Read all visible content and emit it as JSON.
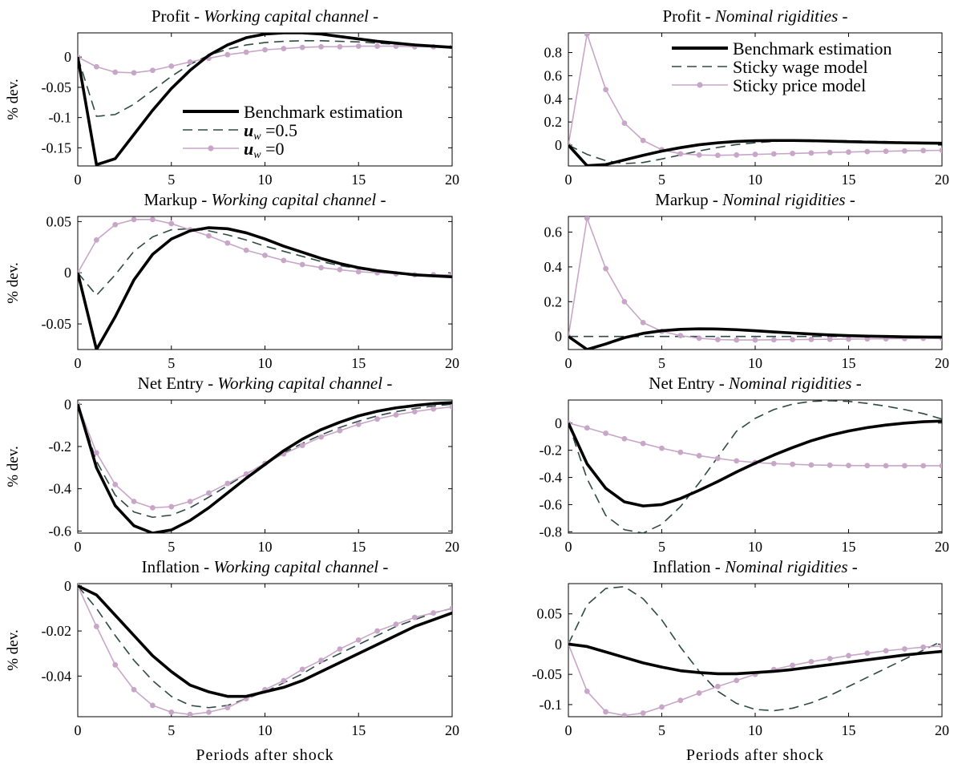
{
  "colors": {
    "benchmark": "#000000",
    "dashed": "#2f4a44",
    "marker": "#c8a6c8"
  },
  "legend_labels": {
    "left": [
      "Benchmark estimation",
      "u_w = 0.5",
      "u_w = 0"
    ],
    "right": [
      "Benchmark estimation",
      "Sticky wage model",
      "Sticky price model"
    ]
  },
  "chart_data": [
    {
      "type": "line",
      "title_main": "Profit - ",
      "title_italic": "Working capital channel",
      "title_tail": " -",
      "ylabel": "% dev.",
      "xlabel": "",
      "x": [
        0,
        1,
        2,
        3,
        4,
        5,
        6,
        7,
        8,
        9,
        10,
        11,
        12,
        13,
        14,
        15,
        16,
        17,
        18,
        19,
        20
      ],
      "xticks": [
        0,
        5,
        10,
        15,
        20
      ],
      "yticks": [
        0,
        -0.05,
        -0.1,
        -0.15
      ],
      "ytick_labels": [
        "0",
        "-0.05",
        "-0.1",
        "-0.15"
      ],
      "ylim": [
        -0.18,
        0.04
      ],
      "legend": "inside",
      "series": [
        {
          "name": "Benchmark estimation",
          "style": "solid",
          "values": [
            0,
            -0.178,
            -0.168,
            -0.128,
            -0.088,
            -0.052,
            -0.022,
            0.003,
            0.02,
            0.032,
            0.038,
            0.04,
            0.04,
            0.038,
            0.034,
            0.03,
            0.026,
            0.023,
            0.02,
            0.018,
            0.016
          ]
        },
        {
          "name": "u_w = 0.5",
          "style": "dashed",
          "values": [
            0,
            -0.098,
            -0.095,
            -0.078,
            -0.055,
            -0.032,
            -0.012,
            0.003,
            0.013,
            0.02,
            0.024,
            0.026,
            0.027,
            0.027,
            0.026,
            0.025,
            0.023,
            0.021,
            0.02,
            0.018,
            0.016
          ]
        },
        {
          "name": "u_w = 0",
          "style": "marker",
          "values": [
            0,
            -0.016,
            -0.025,
            -0.026,
            -0.022,
            -0.015,
            -0.008,
            -0.002,
            0.004,
            0.008,
            0.012,
            0.014,
            0.016,
            0.017,
            0.017,
            0.018,
            0.018,
            0.018,
            0.017,
            0.017,
            0.017
          ]
        }
      ]
    },
    {
      "type": "line",
      "title_main": "Profit - ",
      "title_italic": "Nominal rigidities",
      "title_tail": " -",
      "ylabel": "",
      "xlabel": "",
      "x": [
        0,
        1,
        2,
        3,
        4,
        5,
        6,
        7,
        8,
        9,
        10,
        11,
        12,
        13,
        14,
        15,
        16,
        17,
        18,
        19,
        20
      ],
      "xticks": [
        0,
        5,
        10,
        15,
        20
      ],
      "yticks": [
        0,
        0.2,
        0.4,
        0.6,
        0.8
      ],
      "ytick_labels": [
        "0",
        "0.2",
        "0.4",
        "0.6",
        "0.8"
      ],
      "ylim": [
        -0.18,
        0.97
      ],
      "legend": "top-right",
      "series": [
        {
          "name": "Benchmark estimation",
          "style": "solid",
          "values": [
            0,
            -0.178,
            -0.168,
            -0.128,
            -0.088,
            -0.052,
            -0.022,
            0.003,
            0.02,
            0.032,
            0.038,
            0.04,
            0.04,
            0.038,
            0.034,
            0.03,
            0.026,
            0.023,
            0.02,
            0.018,
            0.016
          ]
        },
        {
          "name": "Sticky wage model",
          "style": "dashed",
          "values": [
            0,
            -0.08,
            -0.135,
            -0.16,
            -0.15,
            -0.12,
            -0.085,
            -0.05,
            -0.02,
            0.005,
            0.02,
            0.032,
            0.038,
            0.04,
            0.04,
            0.038,
            0.034,
            0.03,
            0.026,
            0.022,
            0.018
          ]
        },
        {
          "name": "Sticky price model",
          "style": "marker",
          "values": [
            0,
            0.96,
            0.48,
            0.19,
            0.04,
            -0.04,
            -0.075,
            -0.085,
            -0.088,
            -0.085,
            -0.08,
            -0.076,
            -0.072,
            -0.068,
            -0.064,
            -0.06,
            -0.056,
            -0.053,
            -0.05,
            -0.047,
            -0.045
          ]
        }
      ]
    },
    {
      "type": "line",
      "title_main": "Markup - ",
      "title_italic": "Working capital channel",
      "title_tail": " -",
      "ylabel": "% dev.",
      "xlabel": "",
      "x": [
        0,
        1,
        2,
        3,
        4,
        5,
        6,
        7,
        8,
        9,
        10,
        11,
        12,
        13,
        14,
        15,
        16,
        17,
        18,
        19,
        20
      ],
      "xticks": [
        0,
        5,
        10,
        15,
        20
      ],
      "yticks": [
        0.05,
        0,
        -0.05
      ],
      "ytick_labels": [
        "0.05",
        "0",
        "-0.05"
      ],
      "ylim": [
        -0.075,
        0.055
      ],
      "legend": "none",
      "series": [
        {
          "name": "Benchmark estimation",
          "style": "solid",
          "values": [
            0,
            -0.075,
            -0.043,
            -0.007,
            0.018,
            0.033,
            0.041,
            0.044,
            0.043,
            0.039,
            0.033,
            0.026,
            0.02,
            0.014,
            0.009,
            0.005,
            0.002,
            0,
            -0.002,
            -0.003,
            -0.004
          ]
        },
        {
          "name": "u_w = 0.5",
          "style": "dashed",
          "values": [
            0,
            -0.022,
            -0.002,
            0.021,
            0.035,
            0.042,
            0.043,
            0.041,
            0.037,
            0.032,
            0.026,
            0.021,
            0.016,
            0.011,
            0.007,
            0.004,
            0.001,
            -0.001,
            -0.002,
            -0.003,
            -0.004
          ]
        },
        {
          "name": "u_w = 0",
          "style": "marker",
          "values": [
            0,
            0.032,
            0.047,
            0.052,
            0.052,
            0.048,
            0.042,
            0.036,
            0.029,
            0.022,
            0.017,
            0.012,
            0.008,
            0.005,
            0.003,
            0.001,
            0,
            -0.001,
            -0.002,
            -0.002,
            -0.002
          ]
        }
      ]
    },
    {
      "type": "line",
      "title_main": "Markup - ",
      "title_italic": "Nominal rigidities",
      "title_tail": " -",
      "ylabel": "",
      "xlabel": "",
      "x": [
        0,
        1,
        2,
        3,
        4,
        5,
        6,
        7,
        8,
        9,
        10,
        11,
        12,
        13,
        14,
        15,
        16,
        17,
        18,
        19,
        20
      ],
      "xticks": [
        0,
        5,
        10,
        15,
        20
      ],
      "yticks": [
        0,
        0.2,
        0.4,
        0.6
      ],
      "ytick_labels": [
        "0",
        "0.2",
        "0.4",
        "0.6"
      ],
      "ylim": [
        -0.075,
        0.69
      ],
      "legend": "none",
      "series": [
        {
          "name": "Benchmark estimation",
          "style": "solid",
          "values": [
            0,
            -0.075,
            -0.043,
            -0.007,
            0.018,
            0.033,
            0.041,
            0.044,
            0.043,
            0.039,
            0.033,
            0.026,
            0.02,
            0.014,
            0.009,
            0.005,
            0.002,
            0,
            -0.002,
            -0.003,
            -0.004
          ]
        },
        {
          "name": "Sticky wage model",
          "style": "dashed",
          "values": [
            0,
            0,
            0,
            0,
            0,
            0,
            0,
            0,
            0,
            0,
            0,
            0,
            0,
            0,
            0,
            0,
            0,
            0,
            0,
            0,
            0
          ]
        },
        {
          "name": "Sticky price model",
          "style": "marker",
          "values": [
            0,
            0.68,
            0.39,
            0.2,
            0.08,
            0.03,
            0.005,
            -0.01,
            -0.018,
            -0.02,
            -0.02,
            -0.019,
            -0.018,
            -0.017,
            -0.016,
            -0.015,
            -0.014,
            -0.013,
            -0.012,
            -0.011,
            -0.011
          ]
        }
      ]
    },
    {
      "type": "line",
      "title_main": "Net Entry - ",
      "title_italic": "Working capital channel",
      "title_tail": " -",
      "ylabel": "% dev.",
      "xlabel": "",
      "x": [
        0,
        1,
        2,
        3,
        4,
        5,
        6,
        7,
        8,
        9,
        10,
        11,
        12,
        13,
        14,
        15,
        16,
        17,
        18,
        19,
        20
      ],
      "xticks": [
        0,
        5,
        10,
        15,
        20
      ],
      "yticks": [
        0,
        -0.2,
        -0.4,
        -0.6
      ],
      "ytick_labels": [
        "0",
        "-0.2",
        "-0.4",
        "-0.6"
      ],
      "ylim": [
        -0.61,
        0.02
      ],
      "legend": "none",
      "series": [
        {
          "name": "Benchmark estimation",
          "style": "solid",
          "values": [
            0,
            -0.3,
            -0.48,
            -0.575,
            -0.61,
            -0.595,
            -0.55,
            -0.49,
            -0.42,
            -0.35,
            -0.285,
            -0.22,
            -0.165,
            -0.12,
            -0.085,
            -0.055,
            -0.033,
            -0.017,
            -0.006,
            0.003,
            0.008
          ]
        },
        {
          "name": "u_w = 0.5",
          "style": "dashed",
          "values": [
            0,
            -0.27,
            -0.43,
            -0.51,
            -0.535,
            -0.525,
            -0.49,
            -0.44,
            -0.385,
            -0.33,
            -0.28,
            -0.23,
            -0.185,
            -0.145,
            -0.11,
            -0.08,
            -0.055,
            -0.035,
            -0.02,
            -0.008,
            0
          ]
        },
        {
          "name": "u_w = 0",
          "style": "marker",
          "values": [
            0,
            -0.23,
            -0.38,
            -0.46,
            -0.49,
            -0.485,
            -0.46,
            -0.42,
            -0.375,
            -0.33,
            -0.28,
            -0.235,
            -0.195,
            -0.155,
            -0.125,
            -0.095,
            -0.07,
            -0.05,
            -0.035,
            -0.022,
            -0.012
          ]
        }
      ]
    },
    {
      "type": "line",
      "title_main": "Net Entry - ",
      "title_italic": "Nominal rigidities",
      "title_tail": " -",
      "ylabel": "",
      "xlabel": "",
      "x": [
        0,
        1,
        2,
        3,
        4,
        5,
        6,
        7,
        8,
        9,
        10,
        11,
        12,
        13,
        14,
        15,
        16,
        17,
        18,
        19,
        20
      ],
      "xticks": [
        0,
        5,
        10,
        15,
        20
      ],
      "yticks": [
        0,
        -0.2,
        -0.4,
        -0.6,
        -0.8
      ],
      "ytick_labels": [
        "0",
        "-0.2",
        "-0.4",
        "-0.6",
        "-0.8"
      ],
      "ylim": [
        -0.81,
        0.17
      ],
      "legend": "none",
      "series": [
        {
          "name": "Benchmark estimation",
          "style": "solid",
          "values": [
            0,
            -0.3,
            -0.48,
            -0.58,
            -0.61,
            -0.6,
            -0.555,
            -0.495,
            -0.43,
            -0.36,
            -0.295,
            -0.235,
            -0.18,
            -0.13,
            -0.09,
            -0.058,
            -0.033,
            -0.014,
            0,
            0.01,
            0.015
          ]
        },
        {
          "name": "Sticky wage model",
          "style": "dashed",
          "values": [
            0,
            -0.41,
            -0.68,
            -0.785,
            -0.81,
            -0.745,
            -0.615,
            -0.44,
            -0.25,
            -0.06,
            0.035,
            0.1,
            0.14,
            0.16,
            0.165,
            0.16,
            0.145,
            0.125,
            0.1,
            0.07,
            0.03
          ]
        },
        {
          "name": "Sticky price model",
          "style": "marker",
          "values": [
            0,
            -0.035,
            -0.075,
            -0.115,
            -0.15,
            -0.185,
            -0.215,
            -0.24,
            -0.26,
            -0.278,
            -0.29,
            -0.298,
            -0.303,
            -0.308,
            -0.31,
            -0.312,
            -0.313,
            -0.314,
            -0.314,
            -0.314,
            -0.314
          ]
        }
      ]
    },
    {
      "type": "line",
      "title_main": "Inflation - ",
      "title_italic": "Working capital channel",
      "title_tail": " -",
      "ylabel": "% dev.",
      "xlabel": "Periods after shock",
      "x": [
        0,
        1,
        2,
        3,
        4,
        5,
        6,
        7,
        8,
        9,
        10,
        11,
        12,
        13,
        14,
        15,
        16,
        17,
        18,
        19,
        20
      ],
      "xticks": [
        0,
        5,
        10,
        15,
        20
      ],
      "yticks": [
        0,
        -0.02,
        -0.04
      ],
      "ytick_labels": [
        "0",
        "-0.02",
        "-0.04"
      ],
      "ylim": [
        -0.058,
        0.001
      ],
      "legend": "none",
      "series": [
        {
          "name": "Benchmark estimation",
          "style": "solid",
          "values": [
            0,
            -0.004,
            -0.013,
            -0.022,
            -0.031,
            -0.038,
            -0.044,
            -0.047,
            -0.049,
            -0.049,
            -0.047,
            -0.045,
            -0.042,
            -0.038,
            -0.034,
            -0.03,
            -0.026,
            -0.022,
            -0.018,
            -0.015,
            -0.012
          ]
        },
        {
          "name": "u_w = 0.5",
          "style": "dashed",
          "values": [
            0,
            -0.01,
            -0.022,
            -0.033,
            -0.042,
            -0.049,
            -0.053,
            -0.054,
            -0.053,
            -0.05,
            -0.047,
            -0.043,
            -0.039,
            -0.034,
            -0.03,
            -0.026,
            -0.022,
            -0.018,
            -0.015,
            -0.012,
            -0.01
          ]
        },
        {
          "name": "u_w = 0",
          "style": "marker",
          "values": [
            0,
            -0.018,
            -0.035,
            -0.046,
            -0.053,
            -0.056,
            -0.057,
            -0.056,
            -0.054,
            -0.05,
            -0.046,
            -0.042,
            -0.037,
            -0.033,
            -0.028,
            -0.024,
            -0.02,
            -0.017,
            -0.014,
            -0.012,
            -0.01
          ]
        }
      ]
    },
    {
      "type": "line",
      "title_main": "Inflation - ",
      "title_italic": "Nominal rigidities",
      "title_tail": " -",
      "ylabel": "",
      "xlabel": "Periods after shock",
      "x": [
        0,
        1,
        2,
        3,
        4,
        5,
        6,
        7,
        8,
        9,
        10,
        11,
        12,
        13,
        14,
        15,
        16,
        17,
        18,
        19,
        20
      ],
      "xticks": [
        0,
        5,
        10,
        15,
        20
      ],
      "yticks": [
        0.05,
        0,
        -0.05,
        -0.1
      ],
      "ytick_labels": [
        "0.05",
        "0",
        "-0.05",
        "-0.1"
      ],
      "ylim": [
        -0.12,
        0.1
      ],
      "legend": "none",
      "series": [
        {
          "name": "Benchmark estimation",
          "style": "solid",
          "values": [
            0,
            -0.004,
            -0.013,
            -0.022,
            -0.031,
            -0.038,
            -0.044,
            -0.047,
            -0.049,
            -0.049,
            -0.047,
            -0.045,
            -0.042,
            -0.038,
            -0.034,
            -0.03,
            -0.026,
            -0.022,
            -0.018,
            -0.015,
            -0.012
          ]
        },
        {
          "name": "Sticky wage model",
          "style": "dashed",
          "values": [
            0,
            0.065,
            0.092,
            0.095,
            0.075,
            0.04,
            -0.005,
            -0.045,
            -0.078,
            -0.098,
            -0.108,
            -0.11,
            -0.106,
            -0.097,
            -0.085,
            -0.07,
            -0.055,
            -0.04,
            -0.025,
            -0.01,
            0.005
          ]
        },
        {
          "name": "Sticky price model",
          "style": "marker",
          "values": [
            0,
            -0.078,
            -0.112,
            -0.118,
            -0.114,
            -0.104,
            -0.093,
            -0.081,
            -0.07,
            -0.06,
            -0.05,
            -0.042,
            -0.035,
            -0.029,
            -0.024,
            -0.019,
            -0.015,
            -0.011,
            -0.008,
            -0.005,
            -0.003
          ]
        }
      ]
    }
  ]
}
